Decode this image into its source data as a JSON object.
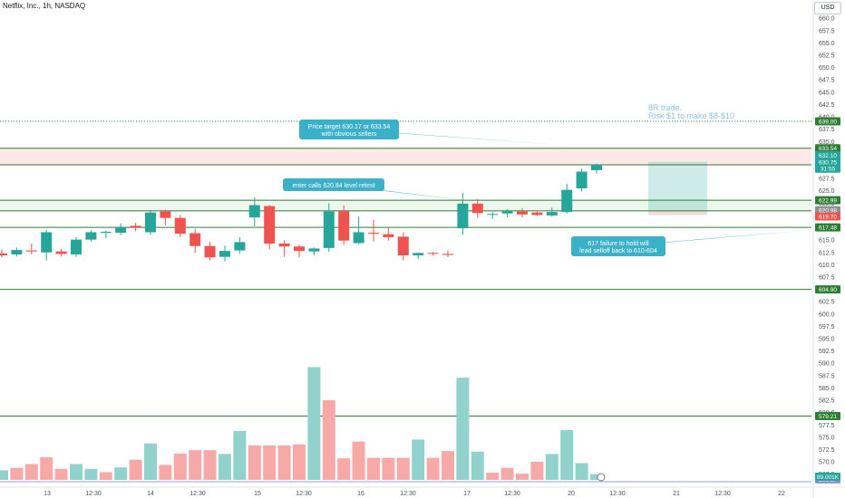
{
  "header": {
    "symbol": "Netflix, Inc., 1h, NASDAQ",
    "currency": "USD"
  },
  "annotations": {
    "callout1": [
      "Price target 630.17 or 633.54",
      "with obvious sellers"
    ],
    "callout2": [
      "enter calls 620.84 level retest"
    ],
    "callout3": [
      "617 failure to hold will",
      "lead selloff back to 610-604"
    ],
    "note": [
      "8R trade.",
      "Risk $1 to make $8-$10"
    ]
  },
  "colors": {
    "up": "#26a69a",
    "down": "#ef5350",
    "upVol": "#92d2cc",
    "downVol": "#f7a9a7",
    "hline": "#2e7d32",
    "callout": "#3bb0c9",
    "note": "#8fc3dd",
    "axisText": "#4a4e59"
  },
  "chart_data": {
    "type": "candlestick",
    "title": "Netflix, Inc., 1h, NASDAQ",
    "ylim": [
      566.37,
      662
    ],
    "y_ticks": [
      "567.5",
      "570.0",
      "572.5",
      "575.0",
      "577.5",
      "580.0",
      "582.5",
      "585.0",
      "587.5",
      "590.0",
      "592.5",
      "595.0",
      "597.5",
      "600.0",
      "602.5",
      "605.0",
      "607.5",
      "610.0",
      "612.5",
      "615.0",
      "617.5",
      "620.0",
      "622.5",
      "625.0",
      "627.5",
      "630.0",
      "632.5",
      "635.0",
      "637.5",
      "640.0",
      "642.5",
      "645.0",
      "647.5",
      "650.0",
      "652.5",
      "655.0",
      "657.5",
      "660.0"
    ],
    "x_ticks": [
      "13",
      "12:30",
      "14",
      "12:30",
      "15",
      "12:30",
      "16",
      "12:30",
      "17",
      "12:30",
      "20",
      "12:30",
      "21",
      "12:30",
      "22"
    ],
    "candles": [
      {
        "o": 612.2,
        "h": 613.0,
        "l": 611.4,
        "c": 611.8
      },
      {
        "o": 612.0,
        "h": 613.4,
        "l": 611.6,
        "c": 612.9
      },
      {
        "o": 612.8,
        "h": 614.2,
        "l": 612.0,
        "c": 612.6
      },
      {
        "o": 612.4,
        "h": 617.0,
        "l": 610.8,
        "c": 616.5
      },
      {
        "o": 612.6,
        "h": 613.1,
        "l": 611.6,
        "c": 612.1
      },
      {
        "o": 612.0,
        "h": 615.5,
        "l": 611.5,
        "c": 615.0
      },
      {
        "o": 615.0,
        "h": 616.9,
        "l": 614.6,
        "c": 616.5
      },
      {
        "o": 616.4,
        "h": 616.8,
        "l": 615.3,
        "c": 616.6
      },
      {
        "o": 616.4,
        "h": 618.3,
        "l": 615.9,
        "c": 617.5
      },
      {
        "o": 617.8,
        "h": 618.4,
        "l": 616.7,
        "c": 617.4
      },
      {
        "o": 616.5,
        "h": 621.0,
        "l": 616.0,
        "c": 620.5
      },
      {
        "o": 620.7,
        "h": 621.1,
        "l": 617.9,
        "c": 619.4
      },
      {
        "o": 619.4,
        "h": 620.0,
        "l": 615.5,
        "c": 616.2
      },
      {
        "o": 616.3,
        "h": 617.2,
        "l": 612.3,
        "c": 613.7
      },
      {
        "o": 613.7,
        "h": 614.6,
        "l": 610.8,
        "c": 611.4
      },
      {
        "o": 611.5,
        "h": 613.8,
        "l": 610.6,
        "c": 612.7
      },
      {
        "o": 612.8,
        "h": 615.5,
        "l": 612.2,
        "c": 614.5
      },
      {
        "o": 619.5,
        "h": 623.6,
        "l": 617.7,
        "c": 622.0
      },
      {
        "o": 621.8,
        "h": 622.0,
        "l": 613.0,
        "c": 614.2
      },
      {
        "o": 614.2,
        "h": 614.9,
        "l": 611.5,
        "c": 613.6
      },
      {
        "o": 613.6,
        "h": 614.0,
        "l": 611.4,
        "c": 612.7
      },
      {
        "o": 612.6,
        "h": 613.4,
        "l": 611.8,
        "c": 613.2
      },
      {
        "o": 613.3,
        "h": 622.4,
        "l": 612.5,
        "c": 620.7
      },
      {
        "o": 620.8,
        "h": 622.0,
        "l": 614.0,
        "c": 614.8
      },
      {
        "o": 614.3,
        "h": 619.7,
        "l": 614.1,
        "c": 616.5
      },
      {
        "o": 616.4,
        "h": 619.0,
        "l": 614.6,
        "c": 616.2
      },
      {
        "o": 616.1,
        "h": 617.5,
        "l": 614.8,
        "c": 615.5
      },
      {
        "o": 615.6,
        "h": 616.5,
        "l": 610.8,
        "c": 611.8
      },
      {
        "o": 611.8,
        "h": 612.4,
        "l": 611.1,
        "c": 612.3
      },
      {
        "o": 612.3,
        "h": 612.5,
        "l": 611.8,
        "c": 612.1
      },
      {
        "o": 612.1,
        "h": 612.8,
        "l": 611.5,
        "c": 611.9
      },
      {
        "o": 617.3,
        "h": 624.5,
        "l": 616.0,
        "c": 622.3
      },
      {
        "o": 622.3,
        "h": 623.2,
        "l": 619.4,
        "c": 620.4
      },
      {
        "o": 620.1,
        "h": 620.6,
        "l": 619.2,
        "c": 620.2
      },
      {
        "o": 620.3,
        "h": 621.2,
        "l": 619.5,
        "c": 620.8
      },
      {
        "o": 620.7,
        "h": 621.4,
        "l": 619.5,
        "c": 620.1
      },
      {
        "o": 620.5,
        "h": 620.9,
        "l": 619.8,
        "c": 620.0
      },
      {
        "o": 619.9,
        "h": 621.5,
        "l": 619.6,
        "c": 620.6
      },
      {
        "o": 620.6,
        "h": 626.3,
        "l": 620.3,
        "c": 625.1
      },
      {
        "o": 625.4,
        "h": 629.4,
        "l": 624.8,
        "c": 628.8
      },
      {
        "o": 629.1,
        "h": 630.4,
        "l": 628.4,
        "c": 630.2
      }
    ],
    "volume": [
      {
        "v": 2,
        "up": true
      },
      {
        "v": 2.5,
        "up": false
      },
      {
        "v": 3.3,
        "up": false
      },
      {
        "v": 4.7,
        "up": false
      },
      {
        "v": 2.3,
        "up": false
      },
      {
        "v": 3.3,
        "up": true
      },
      {
        "v": 2.3,
        "up": true
      },
      {
        "v": 1.6,
        "up": false
      },
      {
        "v": 2.6,
        "up": true
      },
      {
        "v": 4.2,
        "up": false
      },
      {
        "v": 7.6,
        "up": true
      },
      {
        "v": 3.1,
        "up": false
      },
      {
        "v": 5.5,
        "up": false
      },
      {
        "v": 6.2,
        "up": false
      },
      {
        "v": 6.2,
        "up": false
      },
      {
        "v": 5.4,
        "up": true
      },
      {
        "v": 10.2,
        "up": true
      },
      {
        "v": 7.2,
        "up": false
      },
      {
        "v": 7.2,
        "up": false
      },
      {
        "v": 7.2,
        "up": false
      },
      {
        "v": 7.4,
        "up": false
      },
      {
        "v": 23.5,
        "up": true
      },
      {
        "v": 16.6,
        "up": false
      },
      {
        "v": 4.5,
        "up": false
      },
      {
        "v": 8,
        "up": false
      },
      {
        "v": 4.6,
        "up": false
      },
      {
        "v": 4.6,
        "up": false
      },
      {
        "v": 4.6,
        "up": false
      },
      {
        "v": 8.4,
        "up": true
      },
      {
        "v": 4.6,
        "up": false
      },
      {
        "v": 6.0,
        "up": false
      },
      {
        "v": 21.3,
        "up": true
      },
      {
        "v": 5.9,
        "up": true
      },
      {
        "v": 1.5,
        "up": false
      },
      {
        "v": 2.5,
        "up": false
      },
      {
        "v": 1.3,
        "up": false
      },
      {
        "v": 3.8,
        "up": false
      },
      {
        "v": 5.4,
        "up": true
      },
      {
        "v": 10.4,
        "up": true
      },
      {
        "v": 3.5,
        "up": true
      },
      {
        "v": 1.2,
        "up": true
      }
    ],
    "h_lines": [
      {
        "price": 604.9,
        "label": "604.90"
      },
      {
        "price": 617.48,
        "label": "617.48"
      },
      {
        "price": 620.84,
        "label": "620.84"
      },
      {
        "price": 622.99,
        "label": "622.99"
      },
      {
        "price": 630.17,
        "label": "630.17"
      },
      {
        "price": 633.54,
        "label": "633.54"
      },
      {
        "price": 579.21,
        "label": "579.21"
      }
    ],
    "dotted_line": {
      "price": 639.0,
      "label": "639.00"
    },
    "zones": [
      {
        "top": 633.54,
        "bottom": 630.17,
        "kind": "resistance"
      },
      {
        "top": 622.99,
        "bottom": 620.84,
        "kind": "support"
      }
    ],
    "position": {
      "entry": 620.84,
      "target": 630.8,
      "stop": 620.0
    },
    "price_labels": [
      {
        "price": 632.1,
        "label": "632.10",
        "color": "#26a69a"
      },
      {
        "price": 630.75,
        "label": "630.75",
        "color": "#26a69a"
      },
      {
        "price": 629.4,
        "label": "31:55",
        "color": "#26a69a"
      },
      {
        "price": 620.98,
        "label": "620.98",
        "color": "#8c9197"
      },
      {
        "price": 619.7,
        "label": "619.70",
        "color": "#ef5350"
      },
      {
        "price": 566.37,
        "label": "566.37",
        "color": "#8a8fcf"
      }
    ],
    "volume_label": "89.001K"
  }
}
